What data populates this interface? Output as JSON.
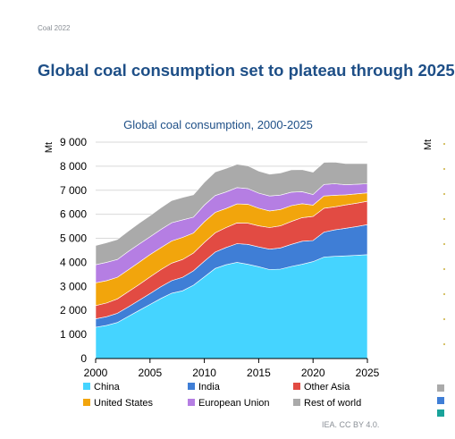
{
  "header": {
    "source": "Coal 2022",
    "headline": "Global coal consumption set to plateau through 2025"
  },
  "footer": {
    "credit": "IEA. CC BY 4.0."
  },
  "chart_data": {
    "type": "area",
    "stacked": true,
    "title": "Global coal consumption, 2000-2025",
    "ylabel": "Mt",
    "xlabel": "",
    "ylim": [
      0,
      9000
    ],
    "yticks": [
      "0",
      "1 000",
      "2 000",
      "3 000",
      "4 000",
      "5 000",
      "6 000",
      "7 000",
      "8 000",
      "9 000"
    ],
    "xticks": [
      "2000",
      "2005",
      "2010",
      "2015",
      "2020",
      "2025"
    ],
    "grid": true,
    "legend": "bottom",
    "x": [
      2000,
      2001,
      2002,
      2003,
      2004,
      2005,
      2006,
      2007,
      2008,
      2009,
      2010,
      2011,
      2012,
      2013,
      2014,
      2015,
      2016,
      2017,
      2018,
      2019,
      2020,
      2021,
      2022,
      2023,
      2024,
      2025
    ],
    "series": [
      {
        "name": "China",
        "color": "#45d4ff",
        "values": [
          1300,
          1380,
          1500,
          1750,
          2000,
          2250,
          2500,
          2720,
          2820,
          3050,
          3400,
          3750,
          3900,
          4000,
          3920,
          3820,
          3700,
          3720,
          3830,
          3920,
          4030,
          4220,
          4250,
          4270,
          4290,
          4320
        ]
      },
      {
        "name": "India",
        "color": "#3f7ed6",
        "values": [
          350,
          360,
          380,
          400,
          420,
          450,
          490,
          520,
          560,
          600,
          650,
          680,
          720,
          780,
          830,
          820,
          850,
          880,
          920,
          960,
          880,
          1040,
          1100,
          1150,
          1200,
          1250
        ]
      },
      {
        "name": "Other Asia",
        "color": "#e24b43",
        "values": [
          550,
          570,
          600,
          630,
          660,
          690,
          710,
          730,
          740,
          740,
          780,
          800,
          830,
          860,
          880,
          880,
          900,
          920,
          950,
          980,
          1000,
          990,
          960,
          970,
          970,
          970
        ]
      },
      {
        "name": "United States",
        "color": "#f2a50c",
        "values": [
          950,
          930,
          900,
          910,
          920,
          930,
          910,
          920,
          920,
          830,
          860,
          850,
          790,
          790,
          790,
          730,
          690,
          680,
          660,
          580,
          470,
          510,
          480,
          420,
          390,
          350
        ]
      },
      {
        "name": "European Union",
        "color": "#b57ee3",
        "values": [
          750,
          760,
          740,
          760,
          760,
          740,
          760,
          760,
          730,
          660,
          690,
          700,
          690,
          680,
          650,
          630,
          620,
          600,
          560,
          500,
          440,
          480,
          480,
          420,
          400,
          380
        ]
      },
      {
        "name": "Rest of world",
        "color": "#aaaaaa",
        "values": [
          800,
          820,
          830,
          850,
          870,
          880,
          900,
          920,
          930,
          930,
          950,
          980,
          980,
          970,
          950,
          920,
          910,
          920,
          930,
          920,
          930,
          920,
          900,
          880,
          860,
          840
        ]
      }
    ]
  }
}
